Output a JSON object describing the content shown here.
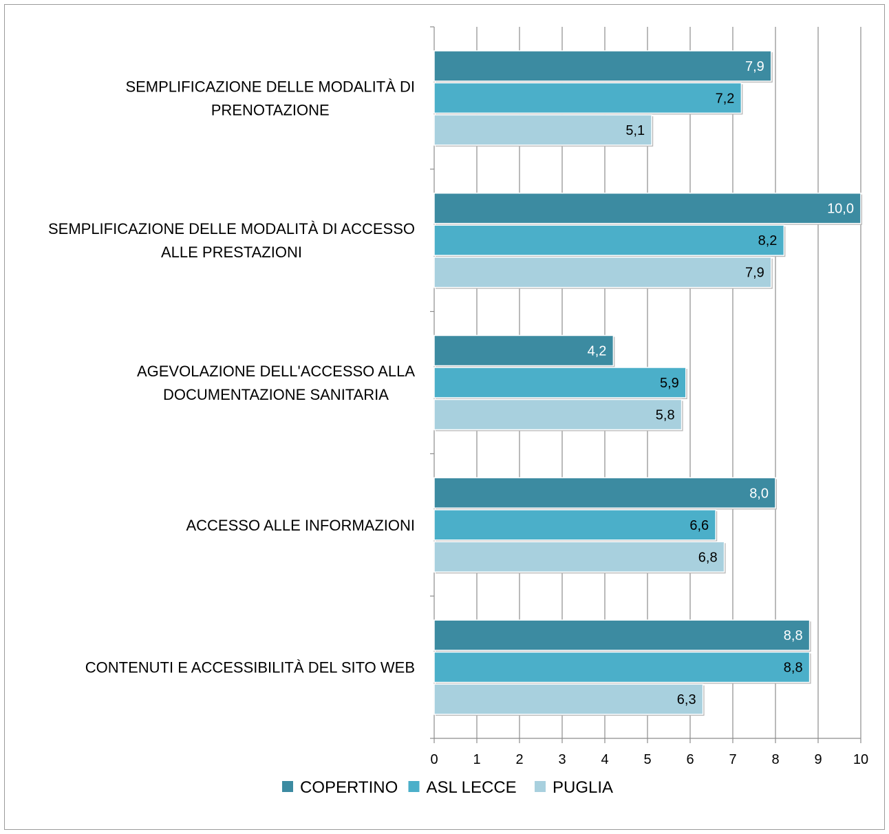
{
  "chart_data": {
    "type": "bar",
    "orientation": "horizontal",
    "categories": [
      [
        "SEMPLIFICAZIONE DELLE MODALITÀ DI",
        "PRENOTAZIONE"
      ],
      [
        "SEMPLIFICAZIONE DELLE MODALITÀ DI ACCESSO",
        "ALLE PRESTAZIONI"
      ],
      [
        "AGEVOLAZIONE DELL'ACCESSO ALLA",
        "DOCUMENTAZIONE SANITARIA"
      ],
      [
        "ACCESSO ALLE INFORMAZIONI"
      ],
      [
        "CONTENUTI E ACCESSIBILITÀ DEL SITO WEB"
      ]
    ],
    "series": [
      {
        "name": "COPERTINO",
        "color": "#3c8ba1",
        "label_color": "#ffffff",
        "values": [
          7.9,
          10.0,
          4.2,
          8.0,
          8.8
        ],
        "labels": [
          "7,9",
          "10,0",
          "4,2",
          "8,0",
          "8,8"
        ]
      },
      {
        "name": "ASL LECCE",
        "color": "#4bafc9",
        "label_color": "#000000",
        "values": [
          7.2,
          8.2,
          5.9,
          6.6,
          8.8
        ],
        "labels": [
          "7,2",
          "8,2",
          "5,9",
          "6,6",
          "8,8"
        ]
      },
      {
        "name": "PUGLIA",
        "color": "#a8d0de",
        "label_color": "#000000",
        "values": [
          5.1,
          7.9,
          5.8,
          6.8,
          6.3
        ],
        "labels": [
          "5,1",
          "7,9",
          "5,8",
          "6,8",
          "6,3"
        ]
      }
    ],
    "xlim": [
      0,
      10
    ],
    "x_ticks": [
      "0",
      "1",
      "2",
      "3",
      "4",
      "5",
      "6",
      "7",
      "8",
      "9",
      "10"
    ],
    "grid": "vertical",
    "legend": "bottom",
    "title": "",
    "xlabel": "",
    "ylabel": ""
  }
}
